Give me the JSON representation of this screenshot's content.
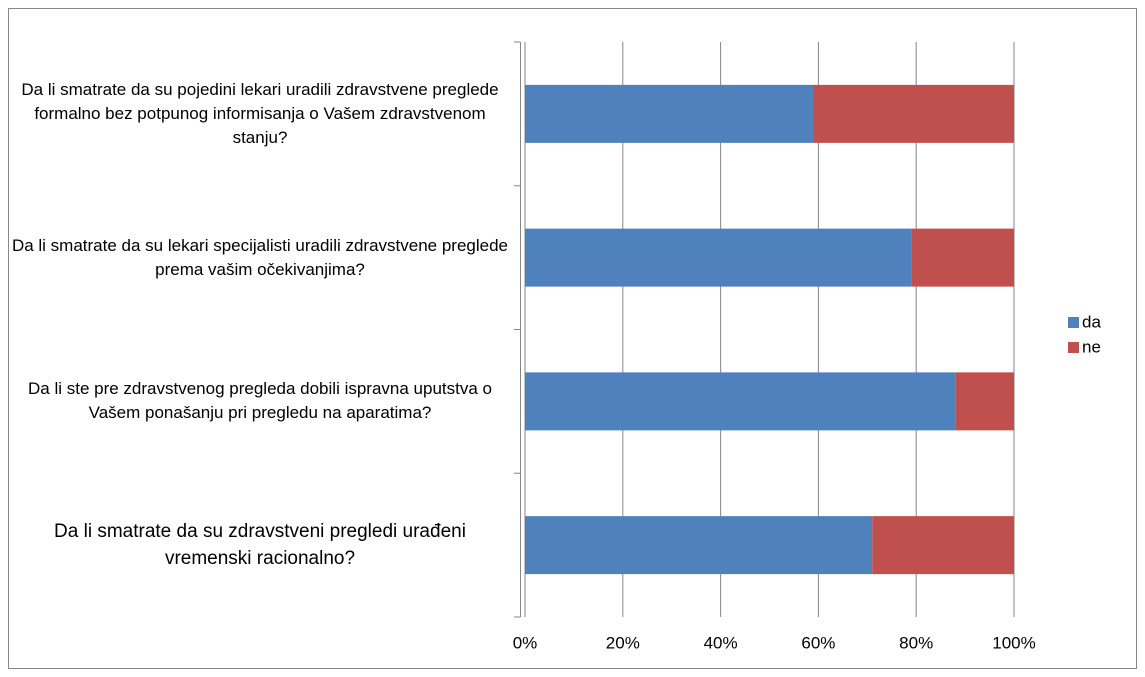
{
  "chart_data": {
    "type": "stacked_barh",
    "categories": [
      "Da li smatrate da su pojedini lekari uradili zdravstvene preglede formalno bez potpunog informisanja o Vašem zdravstvenom stanju?",
      "Da li smatrate da su lekari specijalisti uradili zdravstvene preglede prema vašim očekivanjima?",
      "Da li ste pre zdravstvenog pregleda dobili ispravna uputstva o Vašem ponašanju pri pregledu na aparatima?",
      "Da li smatrate da su zdravstveni pregledi urađeni vremenski racionalno?"
    ],
    "series": [
      {
        "name": "da",
        "color": "#4f81bd",
        "values": [
          59,
          79,
          88,
          71
        ]
      },
      {
        "name": "ne",
        "color": "#c0504d",
        "values": [
          41,
          21,
          12,
          29
        ]
      }
    ],
    "xlim": [
      0,
      100
    ],
    "xticks": [
      {
        "value": 0,
        "label": "0%"
      },
      {
        "value": 20,
        "label": "20%"
      },
      {
        "value": 40,
        "label": "40%"
      },
      {
        "value": 60,
        "label": "60%"
      },
      {
        "value": 80,
        "label": "80%"
      },
      {
        "value": 100,
        "label": "100%"
      }
    ],
    "grid": true,
    "legend": "right"
  }
}
